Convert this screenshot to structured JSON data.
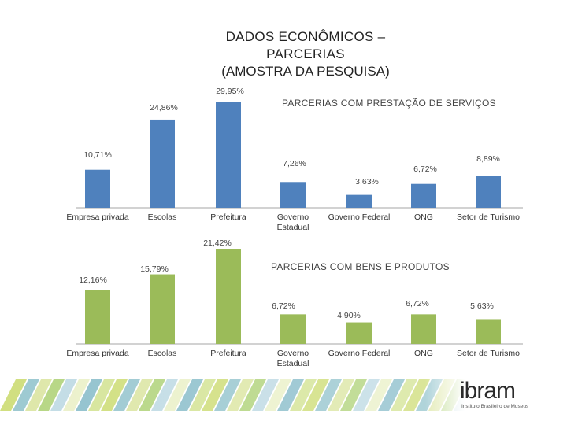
{
  "slide": {
    "title_line1": "DADOS ECONÔMICOS –",
    "title_line2": "PARCERIAS",
    "title_line3": "(AMOSTRA DA PESQUISA)"
  },
  "logo": {
    "text": "ibram",
    "tagline": "Instituto Brasileiro de Museus"
  },
  "colors": {
    "blue": "#4f81bd",
    "green": "#9bbb59",
    "axis": "#a6a6a6"
  },
  "chart_data": [
    {
      "type": "bar",
      "title": "PARCERIAS COM PRESTAÇÃO DE SERVIÇOS",
      "categories": [
        "Empresa privada",
        "Escolas",
        "Prefeitura",
        "Governo Estadual",
        "Governo Federal",
        "ONG",
        "Setor de Turismo"
      ],
      "values": [
        10.71,
        24.86,
        29.95,
        7.26,
        3.63,
        6.72,
        8.89
      ],
      "value_labels": [
        "10,71%",
        "24,86%",
        "29,95%",
        "7,26%",
        "3,63%",
        "6,72%",
        "8,89%"
      ],
      "ylim": [
        0,
        30
      ]
    },
    {
      "type": "bar",
      "title": "PARCERIAS COM BENS E PRODUTOS",
      "categories": [
        "Empresa privada",
        "Escolas",
        "Prefeitura",
        "Governo Estadual",
        "Governo Federal",
        "ONG",
        "Setor de Turismo"
      ],
      "values": [
        12.16,
        15.79,
        21.42,
        6.72,
        4.9,
        6.72,
        5.63
      ],
      "value_labels": [
        "12,16%",
        "15,79%",
        "21,42%",
        "6,72%",
        "4,90%",
        "6,72%",
        "5,63%"
      ],
      "ylim": [
        0,
        30
      ]
    }
  ]
}
